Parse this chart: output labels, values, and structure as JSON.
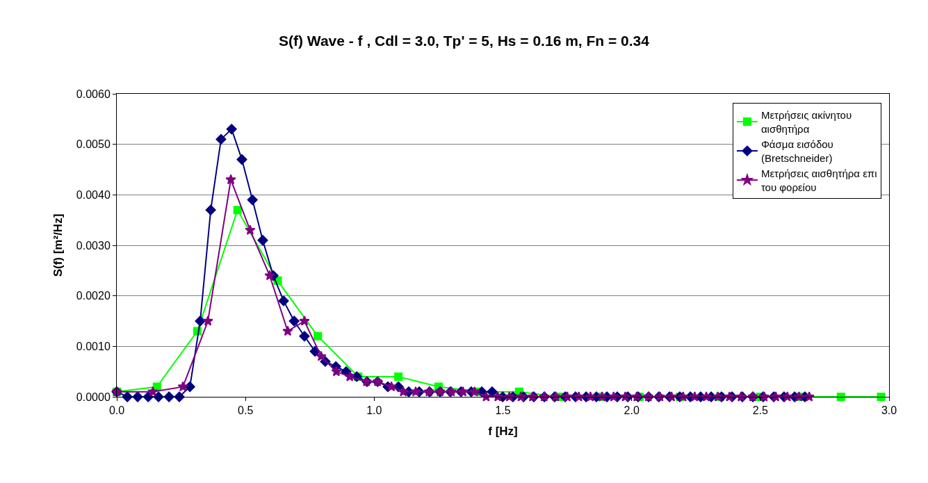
{
  "chart_data": {
    "type": "line",
    "title": "S(f) Wave - f , Cdl = 3.0, Tp' = 5, Hs = 0.16 m, Fn = 0.34",
    "xlabel": "f [Hz]",
    "ylabel": "S(f) [m²/Hz]",
    "xlim": [
      0,
      3.0
    ],
    "xticks": [
      {
        "value": 0,
        "label": "0.0"
      },
      {
        "value": 0.5,
        "label": "0.5"
      },
      {
        "value": 1.0,
        "label": "1.0"
      },
      {
        "value": 1.5,
        "label": "1.5"
      },
      {
        "value": 2.0,
        "label": "2.0"
      },
      {
        "value": 2.5,
        "label": "2.5"
      },
      {
        "value": 3.0,
        "label": "3.0"
      }
    ],
    "ylim": [
      0,
      0.006
    ],
    "yticks": [
      {
        "value": 0,
        "label": "0.0000"
      },
      {
        "value": 0.001,
        "label": "0.0010"
      },
      {
        "value": 0.002,
        "label": "0.0020"
      },
      {
        "value": 0.003,
        "label": "0.0030"
      },
      {
        "value": 0.004,
        "label": "0.0040"
      },
      {
        "value": 0.005,
        "label": "0.0050"
      },
      {
        "value": 0.006,
        "label": "0.0060"
      }
    ],
    "grid": "y",
    "legend": "top right",
    "line_style": "solid",
    "series": [
      {
        "name": "Μετρήσεις ακίνητου αισθητήρα",
        "color": "#00ff00",
        "marker": "square",
        "x": [
          0,
          0.156,
          0.313,
          0.469,
          0.625,
          0.781,
          0.938,
          1.094,
          1.25,
          1.406,
          1.563,
          1.719,
          1.875,
          2.031,
          2.188,
          2.344,
          2.5,
          2.656,
          2.813,
          2.969
        ],
        "values": [
          0.0001,
          0.0002,
          0.0013,
          0.0037,
          0.0023,
          0.0012,
          0.0004,
          0.0004,
          0.0002,
          0.0001,
          0.0001,
          0,
          0,
          0,
          0,
          0,
          0,
          0,
          0,
          0
        ]
      },
      {
        "name": "Φάσμα εισόδου (Bretschneider)",
        "color": "#000080",
        "marker": "diamond",
        "x": [
          0,
          0.041,
          0.081,
          0.122,
          0.162,
          0.203,
          0.243,
          0.284,
          0.324,
          0.365,
          0.405,
          0.446,
          0.486,
          0.527,
          0.567,
          0.608,
          0.648,
          0.689,
          0.729,
          0.77,
          0.81,
          0.851,
          0.891,
          0.932,
          0.972,
          1.013,
          1.053,
          1.094,
          1.134,
          1.175,
          1.215,
          1.256,
          1.296,
          1.337,
          1.377,
          1.418,
          1.458,
          1.499,
          1.539,
          1.58,
          1.62,
          1.661,
          1.701,
          1.742,
          1.782,
          1.823,
          1.863,
          1.904,
          1.944,
          1.985,
          2.025,
          2.066,
          2.106,
          2.147,
          2.187,
          2.228,
          2.268,
          2.309,
          2.349,
          2.39,
          2.43,
          2.471,
          2.511,
          2.552,
          2.592,
          2.633,
          2.673
        ],
        "values": [
          0.0001,
          0,
          0,
          0,
          0,
          0,
          0,
          0.0002,
          0.0015,
          0.0037,
          0.0051,
          0.0053,
          0.0047,
          0.0039,
          0.0031,
          0.0024,
          0.0019,
          0.0015,
          0.0012,
          0.0009,
          0.0007,
          0.0006,
          0.0005,
          0.0004,
          0.0003,
          0.0003,
          0.0002,
          0.0002,
          0.0001,
          0.0001,
          0.0001,
          0.0001,
          0.0001,
          0.0001,
          0.0001,
          0.0001,
          0.0001,
          0,
          0,
          0,
          0,
          0,
          0,
          0,
          0,
          0,
          0,
          0,
          0,
          0,
          0,
          0,
          0,
          0,
          0,
          0,
          0,
          0,
          0,
          0,
          0,
          0,
          0,
          0,
          0,
          0,
          0
        ]
      },
      {
        "name": "Μετρήσεις αισθητήρα επι του φορείου",
        "color": "#800080",
        "marker": "star",
        "x": [
          0,
          0.14,
          0.257,
          0.354,
          0.443,
          0.518,
          0.594,
          0.664,
          0.729,
          0.794,
          0.853,
          0.905,
          0.97,
          1.013,
          1.067,
          1.113,
          1.161,
          1.213,
          1.256,
          1.3,
          1.345,
          1.39,
          1.435,
          1.48,
          1.525,
          1.57,
          1.615,
          1.66,
          1.705,
          1.75,
          1.795,
          1.84,
          1.885,
          1.93,
          1.975,
          2.02,
          2.065,
          2.11,
          2.155,
          2.2,
          2.245,
          2.29,
          2.335,
          2.38,
          2.425,
          2.47,
          2.515,
          2.56,
          2.605,
          2.65,
          2.69
        ],
        "values": [
          0.0001,
          0.0001,
          0.0002,
          0.0015,
          0.0043,
          0.0033,
          0.0024,
          0.0013,
          0.0015,
          0.0008,
          0.0005,
          0.0004,
          0.0003,
          0.0003,
          0.0002,
          0.0001,
          0.0001,
          0.0001,
          0.0001,
          0.0001,
          0.0001,
          0.0001,
          0,
          0,
          0,
          0,
          0,
          0,
          0,
          0,
          0,
          0,
          0,
          0,
          0,
          0,
          0,
          0,
          0,
          0,
          0,
          0,
          0,
          0,
          0,
          0,
          0,
          0,
          0,
          0,
          0
        ]
      }
    ]
  }
}
